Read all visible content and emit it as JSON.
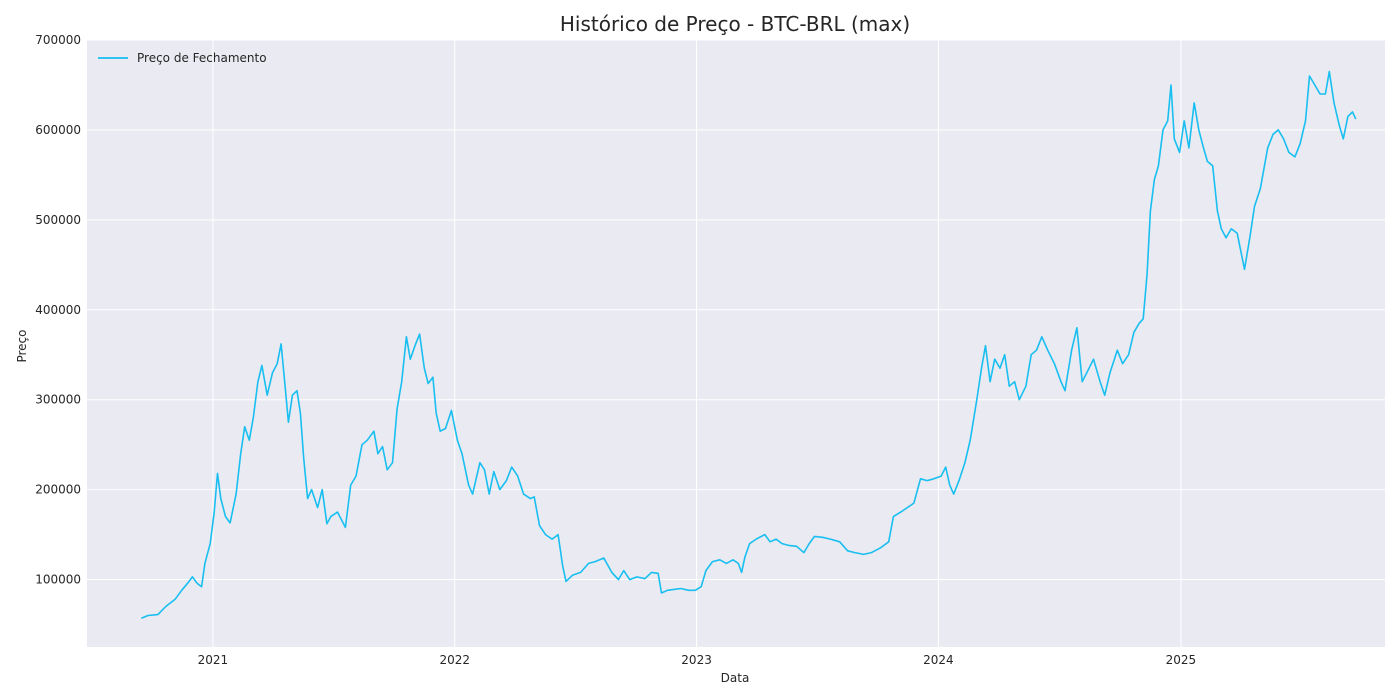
{
  "chart_data": {
    "type": "line",
    "title": "Histórico de Preço - BTC-BRL (max)",
    "xlabel": "Data",
    "ylabel": "Preço",
    "ylim": [
      25000,
      700000
    ],
    "yticks": [
      100000,
      200000,
      300000,
      400000,
      500000,
      600000,
      700000
    ],
    "xlim": [
      "2020-06-25",
      "2025-11-05"
    ],
    "xticks": [
      {
        "date": "2021-01-01",
        "label": "2021"
      },
      {
        "date": "2022-01-01",
        "label": "2022"
      },
      {
        "date": "2023-01-01",
        "label": "2023"
      },
      {
        "date": "2024-01-01",
        "label": "2024"
      },
      {
        "date": "2025-01-01",
        "label": "2025"
      }
    ],
    "grid": true,
    "legend_position": "top-left",
    "colors": {
      "line": "#18bff0",
      "plot_bg": "#eaeaf2",
      "grid": "#ffffff"
    },
    "series": [
      {
        "name": "Preço de Fechamento",
        "points": [
          [
            "2020-09-15",
            57000
          ],
          [
            "2020-09-25",
            60000
          ],
          [
            "2020-10-10",
            61000
          ],
          [
            "2020-10-22",
            70000
          ],
          [
            "2020-11-05",
            78000
          ],
          [
            "2020-11-15",
            88000
          ],
          [
            "2020-11-25",
            97000
          ],
          [
            "2020-12-01",
            103000
          ],
          [
            "2020-12-08",
            96000
          ],
          [
            "2020-12-15",
            92000
          ],
          [
            "2020-12-20",
            118000
          ],
          [
            "2020-12-28",
            140000
          ],
          [
            "2021-01-03",
            175000
          ],
          [
            "2021-01-08",
            218000
          ],
          [
            "2021-01-13",
            190000
          ],
          [
            "2021-01-20",
            170000
          ],
          [
            "2021-01-27",
            163000
          ],
          [
            "2021-02-05",
            195000
          ],
          [
            "2021-02-12",
            240000
          ],
          [
            "2021-02-18",
            270000
          ],
          [
            "2021-02-25",
            255000
          ],
          [
            "2021-03-03",
            280000
          ],
          [
            "2021-03-10",
            320000
          ],
          [
            "2021-03-16",
            338000
          ],
          [
            "2021-03-24",
            305000
          ],
          [
            "2021-04-01",
            330000
          ],
          [
            "2021-04-08",
            340000
          ],
          [
            "2021-04-14",
            362000
          ],
          [
            "2021-04-20",
            315000
          ],
          [
            "2021-04-25",
            275000
          ],
          [
            "2021-05-01",
            305000
          ],
          [
            "2021-05-08",
            310000
          ],
          [
            "2021-05-13",
            285000
          ],
          [
            "2021-05-18",
            235000
          ],
          [
            "2021-05-24",
            190000
          ],
          [
            "2021-05-30",
            200000
          ],
          [
            "2021-06-08",
            180000
          ],
          [
            "2021-06-15",
            200000
          ],
          [
            "2021-06-22",
            162000
          ],
          [
            "2021-06-28",
            170000
          ],
          [
            "2021-07-08",
            175000
          ],
          [
            "2021-07-20",
            158000
          ],
          [
            "2021-07-28",
            205000
          ],
          [
            "2021-08-05",
            215000
          ],
          [
            "2021-08-14",
            250000
          ],
          [
            "2021-08-22",
            255000
          ],
          [
            "2021-09-01",
            265000
          ],
          [
            "2021-09-07",
            240000
          ],
          [
            "2021-09-14",
            248000
          ],
          [
            "2021-09-21",
            222000
          ],
          [
            "2021-09-29",
            230000
          ],
          [
            "2021-10-06",
            290000
          ],
          [
            "2021-10-13",
            320000
          ],
          [
            "2021-10-20",
            370000
          ],
          [
            "2021-10-26",
            345000
          ],
          [
            "2021-11-02",
            360000
          ],
          [
            "2021-11-09",
            373000
          ],
          [
            "2021-11-16",
            335000
          ],
          [
            "2021-11-22",
            318000
          ],
          [
            "2021-11-29",
            325000
          ],
          [
            "2021-12-04",
            285000
          ],
          [
            "2021-12-10",
            265000
          ],
          [
            "2021-12-18",
            268000
          ],
          [
            "2021-12-27",
            288000
          ],
          [
            "2022-01-05",
            255000
          ],
          [
            "2022-01-12",
            240000
          ],
          [
            "2022-01-22",
            205000
          ],
          [
            "2022-01-28",
            195000
          ],
          [
            "2022-02-08",
            230000
          ],
          [
            "2022-02-15",
            222000
          ],
          [
            "2022-02-22",
            195000
          ],
          [
            "2022-03-01",
            220000
          ],
          [
            "2022-03-10",
            200000
          ],
          [
            "2022-03-20",
            210000
          ],
          [
            "2022-03-28",
            225000
          ],
          [
            "2022-04-06",
            215000
          ],
          [
            "2022-04-15",
            195000
          ],
          [
            "2022-04-25",
            190000
          ],
          [
            "2022-05-01",
            192000
          ],
          [
            "2022-05-09",
            160000
          ],
          [
            "2022-05-18",
            150000
          ],
          [
            "2022-05-28",
            145000
          ],
          [
            "2022-06-06",
            150000
          ],
          [
            "2022-06-13",
            115000
          ],
          [
            "2022-06-18",
            98000
          ],
          [
            "2022-06-28",
            105000
          ],
          [
            "2022-07-10",
            108000
          ],
          [
            "2022-07-22",
            118000
          ],
          [
            "2022-08-01",
            120000
          ],
          [
            "2022-08-14",
            124000
          ],
          [
            "2022-08-26",
            108000
          ],
          [
            "2022-09-05",
            100000
          ],
          [
            "2022-09-13",
            110000
          ],
          [
            "2022-09-22",
            100000
          ],
          [
            "2022-10-03",
            103000
          ],
          [
            "2022-10-15",
            101000
          ],
          [
            "2022-10-25",
            108000
          ],
          [
            "2022-11-04",
            107000
          ],
          [
            "2022-11-09",
            85000
          ],
          [
            "2022-11-18",
            88000
          ],
          [
            "2022-11-28",
            89000
          ],
          [
            "2022-12-08",
            90000
          ],
          [
            "2022-12-20",
            88000
          ],
          [
            "2022-12-30",
            88000
          ],
          [
            "2023-01-08",
            92000
          ],
          [
            "2023-01-15",
            110000
          ],
          [
            "2023-01-25",
            120000
          ],
          [
            "2023-02-05",
            122000
          ],
          [
            "2023-02-15",
            118000
          ],
          [
            "2023-02-25",
            122000
          ],
          [
            "2023-03-05",
            118000
          ],
          [
            "2023-03-10",
            108000
          ],
          [
            "2023-03-15",
            125000
          ],
          [
            "2023-03-22",
            140000
          ],
          [
            "2023-04-01",
            145000
          ],
          [
            "2023-04-14",
            150000
          ],
          [
            "2023-04-22",
            142000
          ],
          [
            "2023-05-01",
            145000
          ],
          [
            "2023-05-10",
            140000
          ],
          [
            "2023-05-20",
            138000
          ],
          [
            "2023-06-01",
            137000
          ],
          [
            "2023-06-12",
            130000
          ],
          [
            "2023-06-20",
            140000
          ],
          [
            "2023-06-28",
            148000
          ],
          [
            "2023-07-10",
            147000
          ],
          [
            "2023-07-22",
            145000
          ],
          [
            "2023-08-05",
            142000
          ],
          [
            "2023-08-17",
            132000
          ],
          [
            "2023-08-28",
            130000
          ],
          [
            "2023-09-10",
            128000
          ],
          [
            "2023-09-22",
            130000
          ],
          [
            "2023-10-05",
            135000
          ],
          [
            "2023-10-18",
            142000
          ],
          [
            "2023-10-25",
            170000
          ],
          [
            "2023-11-05",
            175000
          ],
          [
            "2023-11-15",
            180000
          ],
          [
            "2023-11-25",
            185000
          ],
          [
            "2023-12-05",
            212000
          ],
          [
            "2023-12-15",
            210000
          ],
          [
            "2023-12-25",
            212000
          ],
          [
            "2024-01-05",
            215000
          ],
          [
            "2024-01-12",
            225000
          ],
          [
            "2024-01-18",
            205000
          ],
          [
            "2024-01-24",
            195000
          ],
          [
            "2024-02-01",
            210000
          ],
          [
            "2024-02-10",
            230000
          ],
          [
            "2024-02-18",
            255000
          ],
          [
            "2024-02-28",
            300000
          ],
          [
            "2024-03-06",
            335000
          ],
          [
            "2024-03-12, ",
            360000
          ],
          [
            "2024-03-19",
            320000
          ],
          [
            "2024-03-26",
            345000
          ],
          [
            "2024-04-03",
            335000
          ],
          [
            "2024-04-10",
            350000
          ],
          [
            "2024-04-17",
            315000
          ],
          [
            "2024-04-25",
            320000
          ],
          [
            "2024-05-02",
            300000
          ],
          [
            "2024-05-12",
            315000
          ],
          [
            "2024-05-20",
            350000
          ],
          [
            "2024-05-28",
            355000
          ],
          [
            "2024-06-05",
            370000
          ],
          [
            "2024-06-14",
            355000
          ],
          [
            "2024-06-24",
            340000
          ],
          [
            "2024-07-04",
            320000
          ],
          [
            "2024-07-10",
            310000
          ],
          [
            "2024-07-20",
            355000
          ],
          [
            "2024-07-28",
            380000
          ],
          [
            "2024-08-05",
            320000
          ],
          [
            "2024-08-12",
            330000
          ],
          [
            "2024-08-22",
            345000
          ],
          [
            "2024-09-01",
            320000
          ],
          [
            "2024-09-08",
            305000
          ],
          [
            "2024-09-16",
            330000
          ],
          [
            "2024-09-27",
            355000
          ],
          [
            "2024-10-05",
            340000
          ],
          [
            "2024-10-14",
            350000
          ],
          [
            "2024-10-22",
            375000
          ],
          [
            "2024-10-30",
            385000
          ],
          [
            "2024-11-05",
            390000
          ],
          [
            "2024-11-11",
            440000
          ],
          [
            "2024-11-16",
            510000
          ],
          [
            "2024-11-22",
            545000
          ],
          [
            "2024-11-28",
            560000
          ],
          [
            "2024-12-05",
            600000
          ],
          [
            "2024-12-12",
            610000
          ],
          [
            "2024-12-17",
            650000
          ],
          [
            "2024-12-22",
            590000
          ],
          [
            "2024-12-30",
            575000
          ],
          [
            "2025-01-06",
            610000
          ],
          [
            "2025-01-13",
            580000
          ],
          [
            "2025-01-21",
            630000
          ],
          [
            "2025-01-28",
            600000
          ],
          [
            "2025-02-04",
            580000
          ],
          [
            "2025-02-10",
            565000
          ],
          [
            "2025-02-18",
            560000
          ],
          [
            "2025-02-25",
            510000
          ],
          [
            "2025-03-03",
            490000
          ],
          [
            "2025-03-10",
            480000
          ],
          [
            "2025-03-18",
            490000
          ],
          [
            "2025-03-27",
            485000
          ],
          [
            "2025-04-07",
            445000
          ],
          [
            "2025-04-15",
            480000
          ],
          [
            "2025-04-22",
            515000
          ],
          [
            "2025-05-01",
            535000
          ],
          [
            "2025-05-12",
            580000
          ],
          [
            "2025-05-20",
            595000
          ],
          [
            "2025-05-28",
            600000
          ],
          [
            "2025-06-05",
            590000
          ],
          [
            "2025-06-13",
            575000
          ],
          [
            "2025-06-22",
            570000
          ],
          [
            "2025-06-30",
            585000
          ],
          [
            "2025-07-08",
            610000
          ],
          [
            "2025-07-14",
            660000
          ],
          [
            "2025-07-22",
            650000
          ],
          [
            "2025-07-30",
            640000
          ],
          [
            "2025-08-07",
            640000
          ],
          [
            "2025-08-13",
            665000
          ],
          [
            "2025-08-20",
            630000
          ],
          [
            "2025-08-28",
            605000
          ],
          [
            "2025-09-03",
            590000
          ],
          [
            "2025-09-10",
            615000
          ],
          [
            "2025-09-17",
            620000
          ],
          [
            "2025-09-22",
            612000
          ]
        ]
      }
    ]
  }
}
